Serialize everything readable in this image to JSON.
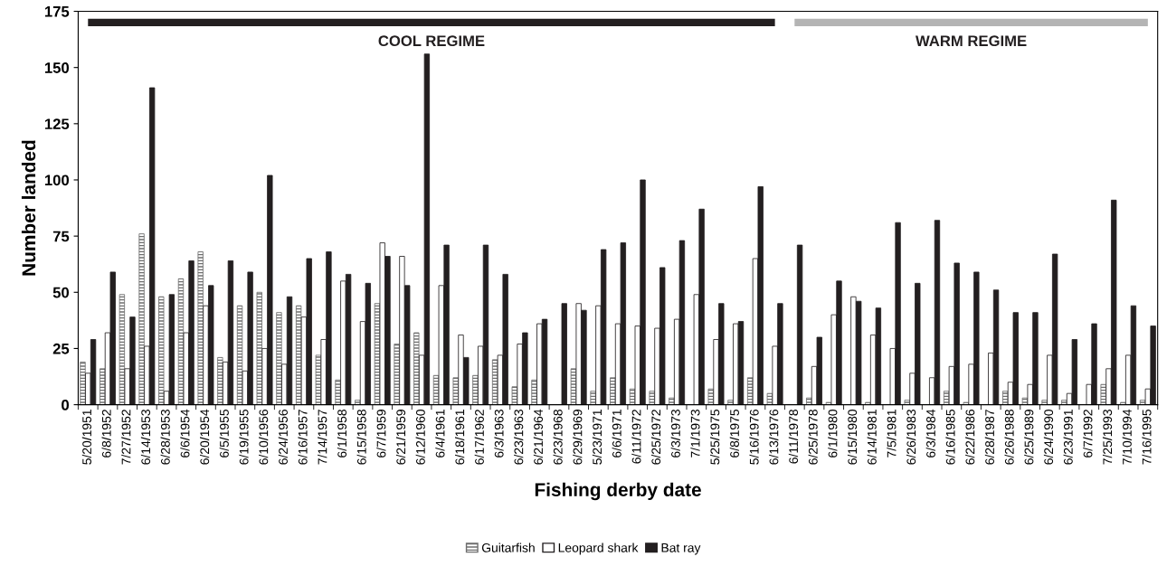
{
  "chart_data": {
    "type": "bar",
    "xlabel": "Fishing derby date",
    "ylabel": "Number landed",
    "categories": [
      "5/20/1951",
      "6/8/1952",
      "7/27/1952",
      "6/14/1953",
      "6/28/1953",
      "6/6/1954",
      "6/20/1954",
      "6/5/1955",
      "6/19/1955",
      "6/10/1956",
      "6/24/1956",
      "6/16/1957",
      "7/14/1957",
      "6/1/1958",
      "6/15/1958",
      "6/7/1959",
      "6/21/1959",
      "6/12/1960",
      "6/4/1961",
      "6/18/1961",
      "6/17/1962",
      "6/3/1963",
      "6/23/1963",
      "6/21/1964",
      "6/23/1968",
      "6/29/1969",
      "5/23/1971",
      "6/6/1971",
      "6/11/1972",
      "6/25/1972",
      "6/3/1973",
      "7/1/1973",
      "5/25/1975",
      "6/8/1975",
      "5/16/1976",
      "6/13/1976",
      "6/11/1978",
      "6/25/1978",
      "6/1/1980",
      "6/15/1980",
      "6/14/1981",
      "7/5/1981",
      "6/26/1983",
      "6/3/1984",
      "6/16/1985",
      "6/22/1986",
      "6/28/1987",
      "6/26/1988",
      "6/25/1989",
      "6/24/1990",
      "6/23/1991",
      "6/7/1992",
      "7/25/1993",
      "7/10/1994",
      "7/16/1995"
    ],
    "series": [
      {
        "name": "Guitarfish",
        "color": "#6e6e6e",
        "values": [
          19,
          16,
          49,
          76,
          48,
          56,
          68,
          21,
          44,
          50,
          41,
          44,
          22,
          11,
          2,
          45,
          27,
          32,
          13,
          12,
          13,
          20,
          8,
          11,
          0,
          16,
          6,
          12,
          7,
          6,
          3,
          0,
          7,
          2,
          12,
          5,
          0,
          3,
          1,
          0,
          1,
          0,
          2,
          0,
          6,
          1,
          0,
          6,
          3,
          2,
          2,
          0,
          9,
          1,
          2
        ]
      },
      {
        "name": "Leopard shark",
        "color": "#ffffff",
        "values": [
          14,
          32,
          16,
          26,
          6,
          32,
          44,
          19,
          15,
          25,
          18,
          39,
          29,
          55,
          37,
          72,
          66,
          22,
          53,
          31,
          26,
          22,
          27,
          36,
          0,
          45,
          44,
          36,
          35,
          34,
          38,
          49,
          29,
          36,
          65,
          26,
          0,
          17,
          40,
          48,
          31,
          25,
          14,
          12,
          17,
          18,
          23,
          10,
          9,
          22,
          5,
          9,
          16,
          22,
          7
        ]
      },
      {
        "name": "Bat ray",
        "color": "#231f20",
        "values": [
          29,
          59,
          39,
          141,
          49,
          64,
          53,
          64,
          59,
          102,
          48,
          65,
          68,
          58,
          54,
          66,
          53,
          156,
          71,
          21,
          71,
          58,
          32,
          38,
          45,
          42,
          69,
          72,
          100,
          61,
          73,
          87,
          45,
          37,
          97,
          45,
          71,
          30,
          55,
          46,
          43,
          81,
          54,
          82,
          63,
          59,
          51,
          41,
          41,
          67,
          29,
          36,
          91,
          44,
          35
        ]
      },
      {
        "type": "line",
        "color": "#231f20",
        "values": [
          170,
          170,
          170,
          170,
          170,
          170,
          170,
          170,
          170,
          170,
          170,
          170,
          170,
          170,
          170,
          170,
          170,
          170,
          170,
          170,
          170,
          170,
          170,
          170,
          170,
          170,
          170,
          170,
          170,
          170,
          170,
          170,
          170,
          170,
          170,
          170,
          null,
          null,
          null,
          null,
          null,
          null,
          null,
          null,
          null,
          null,
          null,
          null,
          null,
          null,
          null,
          null,
          null,
          null,
          null
        ]
      },
      {
        "type": "line",
        "color": "#b4b4b4",
        "values": [
          null,
          null,
          null,
          null,
          null,
          null,
          null,
          null,
          null,
          null,
          null,
          null,
          null,
          null,
          null,
          null,
          null,
          null,
          null,
          null,
          null,
          null,
          null,
          null,
          null,
          null,
          null,
          null,
          null,
          null,
          null,
          null,
          null,
          null,
          null,
          null,
          170,
          170,
          170,
          170,
          170,
          170,
          170,
          170,
          170,
          170,
          170,
          170,
          170,
          170,
          170,
          170,
          170,
          170,
          170
        ]
      }
    ],
    "ylim": [
      0,
      175
    ],
    "yticks": [
      0,
      25,
      50,
      75,
      100,
      125,
      150,
      175
    ],
    "annotations": [
      "COOL REGIME",
      "WARM REGIME"
    ],
    "grid": false,
    "legend": "bottom"
  }
}
